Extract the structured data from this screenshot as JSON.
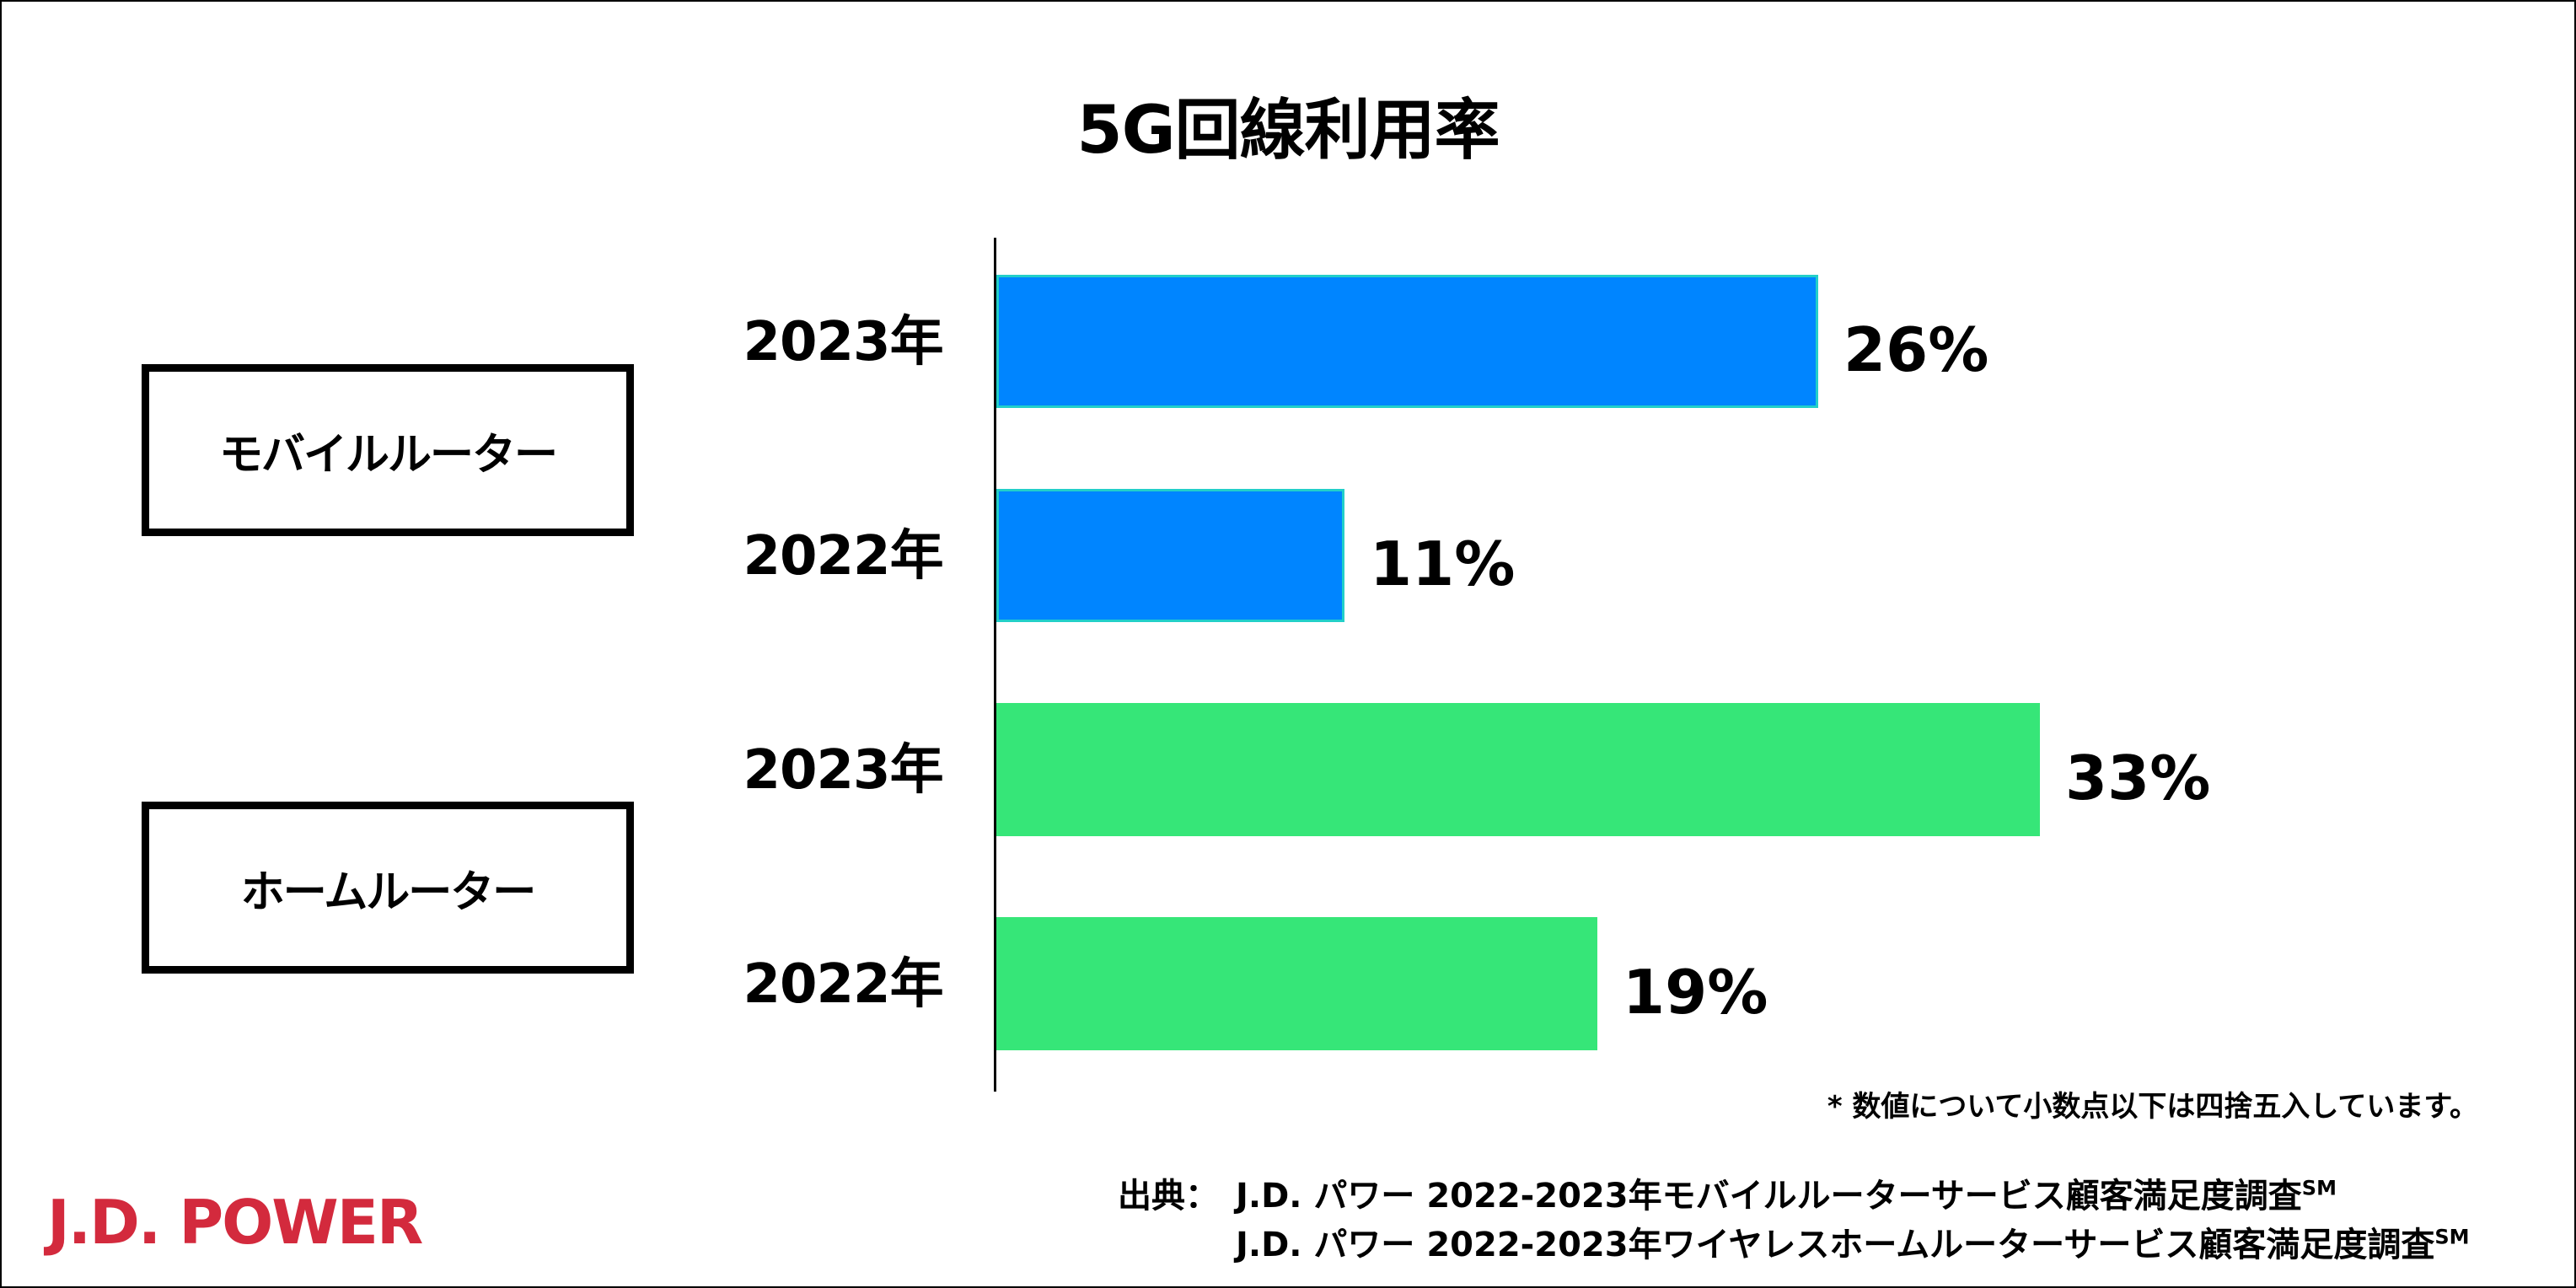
{
  "chart_data": {
    "type": "bar",
    "orientation": "horizontal",
    "title": "5G回線利用率",
    "xlim": [
      0,
      100
    ],
    "groups": [
      {
        "name": "モバイルルーター",
        "color": "#0085ff",
        "bars": [
          {
            "label": "2023年",
            "value": 26,
            "value_label": "26%"
          },
          {
            "label": "2022年",
            "value": 11,
            "value_label": "11%"
          }
        ]
      },
      {
        "name": "ホームルーター",
        "color": "#36e678",
        "bars": [
          {
            "label": "2023年",
            "value": 33,
            "value_label": "33%"
          },
          {
            "label": "2022年",
            "value": 19,
            "value_label": "19%"
          }
        ]
      }
    ],
    "grid": false,
    "legend": "none"
  },
  "footer": {
    "note": "* 数値について小数点以下は四捨五入しています。",
    "source_prefix": "出典：",
    "source_lines": [
      "J.D. パワー 2022-2023年モバイルルーターサービス顧客満足度調査",
      "J.D. パワー 2022-2023年ワイヤレスホームルーターサービス顧客満足度調査"
    ],
    "service_mark": "SM",
    "logo": "J.D. POWER"
  },
  "colors": {
    "mobile_bar": "#0085ff",
    "mobile_bar_border": "#22cfc9",
    "home_bar": "#36e678",
    "logo": "#d32a3d"
  }
}
